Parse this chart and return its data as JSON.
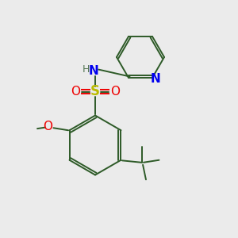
{
  "bg_color": "#ebebeb",
  "bond_color": "#2d5a27",
  "bond_lw": 1.4,
  "N_color": "#0000ee",
  "O_color": "#ee0000",
  "S_color": "#bbbb00",
  "H_color": "#557755",
  "figsize": [
    3.0,
    3.0
  ],
  "dpi": 100,
  "xlim": [
    0,
    10
  ],
  "ylim": [
    0,
    10
  ]
}
